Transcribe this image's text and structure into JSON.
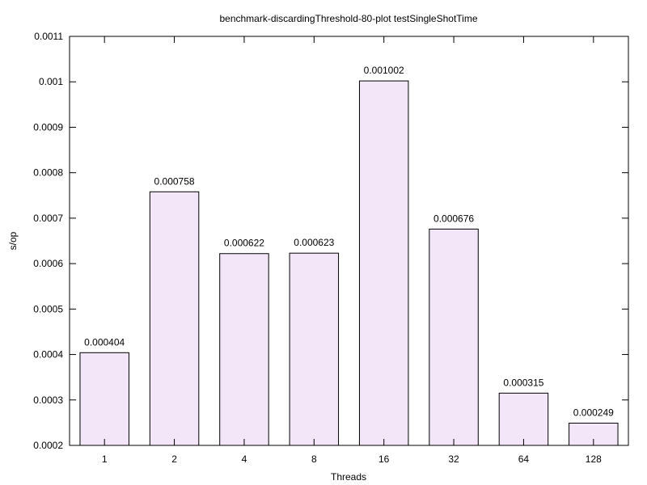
{
  "chart_data": {
    "type": "bar",
    "title": "benchmark-discardingThreshold-80-plot testSingleShotTime",
    "xlabel": "Threads",
    "ylabel": "s/op",
    "categories": [
      "1",
      "2",
      "4",
      "8",
      "16",
      "32",
      "64",
      "128"
    ],
    "values": [
      0.000404,
      0.000758,
      0.000622,
      0.000623,
      0.001002,
      0.000676,
      0.000315,
      0.000249
    ],
    "data_labels": [
      "0.000404",
      "0.000758",
      "0.000622",
      "0.000623",
      "0.001002",
      "0.000676",
      "0.000315",
      "0.000249"
    ],
    "ylim": [
      0.0002,
      0.0011
    ],
    "yticks": [
      "0.0002",
      "0.0003",
      "0.0004",
      "0.0005",
      "0.0006",
      "0.0007",
      "0.0008",
      "0.0009",
      "0.001",
      "0.0011"
    ],
    "grid": false,
    "legend": "none",
    "colors": {
      "bar_fill": "#f3e6f8",
      "bar_stroke": "#000000",
      "axis": "#000000"
    }
  }
}
